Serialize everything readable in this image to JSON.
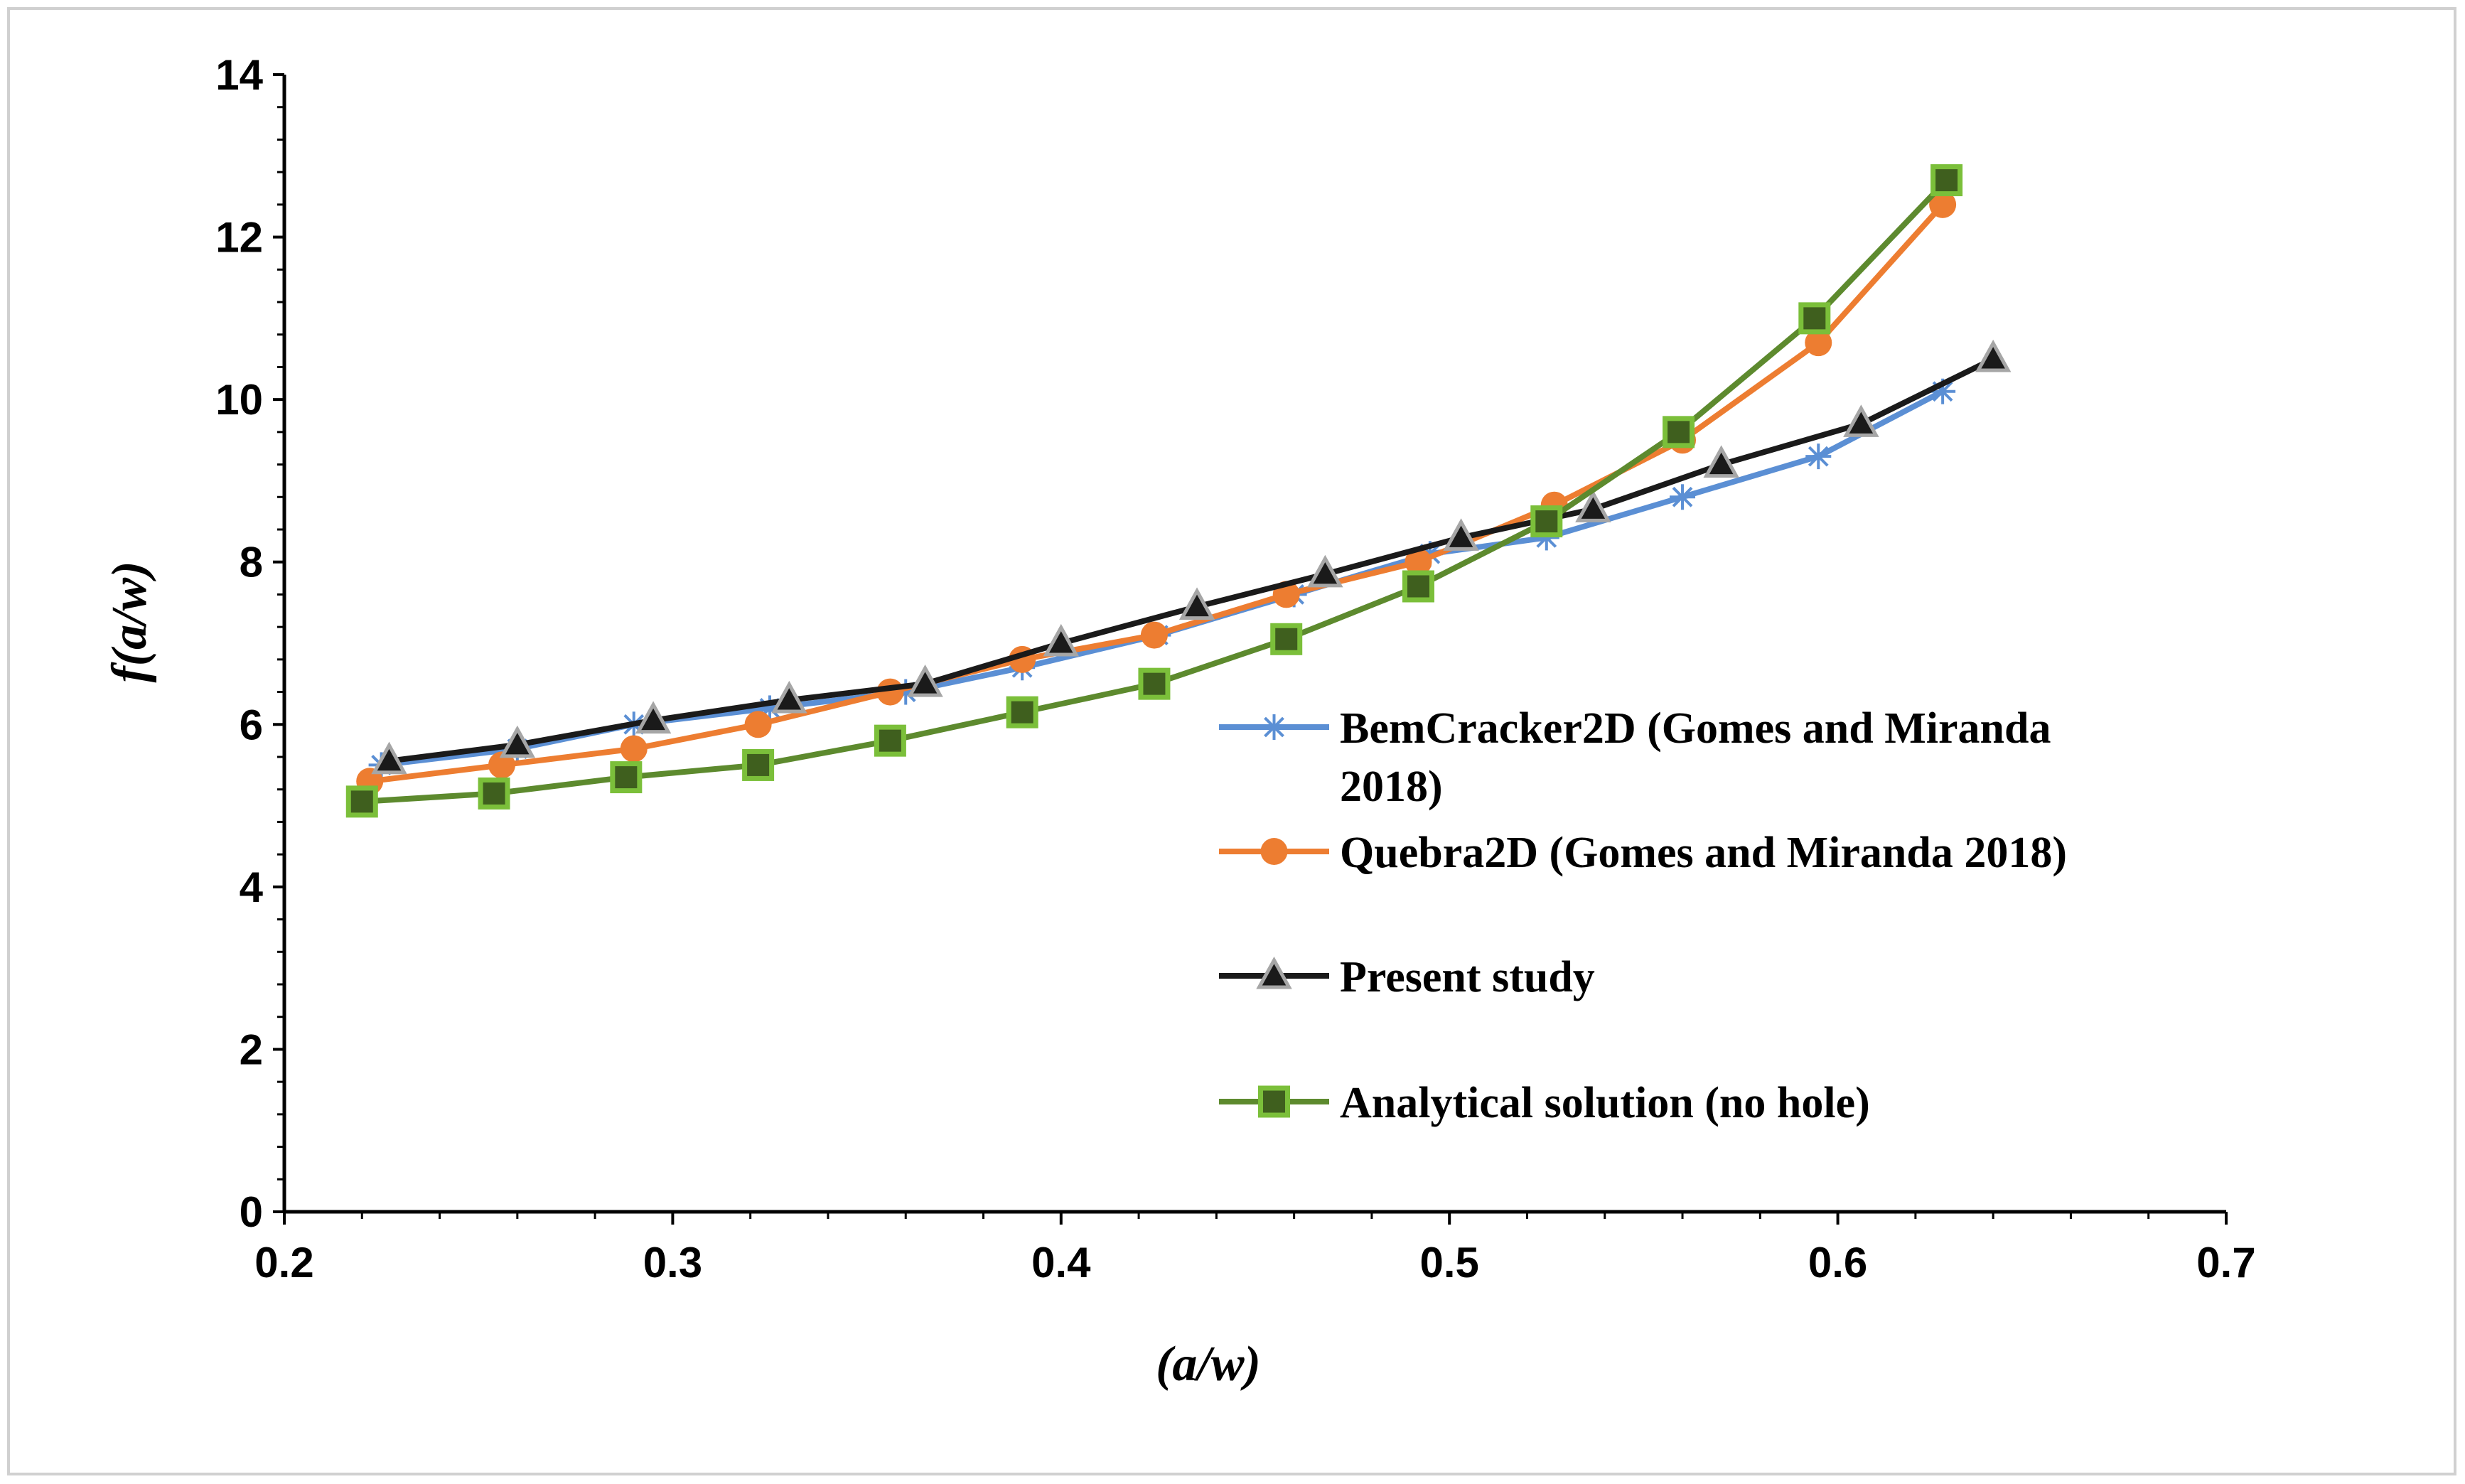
{
  "chart_data": {
    "type": "line",
    "title": "",
    "xlabel": "(a/w)",
    "ylabel": "f(a/w)",
    "xlim": [
      0.2,
      0.7
    ],
    "ylim": [
      0,
      14
    ],
    "x_ticks": [
      "0.2",
      "0.3",
      "0.4",
      "0.5",
      "0.6",
      "0.7"
    ],
    "x_tick_values": [
      0.2,
      0.3,
      0.4,
      0.5,
      0.6,
      0.7
    ],
    "y_ticks": [
      "0",
      "2",
      "4",
      "6",
      "8",
      "10",
      "12",
      "14"
    ],
    "y_tick_values": [
      0,
      2,
      4,
      6,
      8,
      10,
      12,
      14
    ],
    "grid": false,
    "legend_position": "right-middle",
    "series": [
      {
        "name": "BemCracker2D  (Gomes and Miranda 2018)",
        "name_lines": [
          "BemCracker2D  (Gomes and Miranda",
          "2018)"
        ],
        "color": "#5b8fd4",
        "marker": "asterisk",
        "x": [
          0.225,
          0.26,
          0.29,
          0.325,
          0.36,
          0.39,
          0.425,
          0.46,
          0.495,
          0.525,
          0.56,
          0.595,
          0.627
        ],
        "y": [
          5.5,
          5.7,
          6.0,
          6.2,
          6.4,
          6.7,
          7.1,
          7.6,
          8.1,
          8.3,
          8.8,
          9.3,
          10.1
        ]
      },
      {
        "name": "Quebra2D  (Gomes and Miranda 2018)",
        "color": "#ed7d31",
        "marker": "circle",
        "x": [
          0.222,
          0.256,
          0.29,
          0.322,
          0.356,
          0.39,
          0.424,
          0.458,
          0.492,
          0.527,
          0.56,
          0.595,
          0.627
        ],
        "y": [
          5.3,
          5.5,
          5.7,
          6.0,
          6.4,
          6.8,
          7.1,
          7.6,
          8.0,
          8.7,
          9.5,
          10.7,
          12.4
        ]
      },
      {
        "name": "Present study",
        "color": "#1a1a1a",
        "marker": "triangle",
        "x": [
          0.227,
          0.26,
          0.295,
          0.33,
          0.365,
          0.4,
          0.435,
          0.468,
          0.503,
          0.537,
          0.57,
          0.606,
          0.64
        ],
        "y": [
          5.55,
          5.75,
          6.05,
          6.3,
          6.5,
          7.0,
          7.45,
          7.85,
          8.3,
          8.65,
          9.2,
          9.7,
          10.5
        ]
      },
      {
        "name": "Analytical solution (no hole)",
        "color": "#5d8a2e",
        "marker": "square",
        "x": [
          0.22,
          0.254,
          0.288,
          0.322,
          0.356,
          0.39,
          0.424,
          0.458,
          0.492,
          0.525,
          0.559,
          0.594,
          0.628
        ],
        "y": [
          5.05,
          5.15,
          5.35,
          5.5,
          5.8,
          6.15,
          6.5,
          7.05,
          7.7,
          8.5,
          9.6,
          11.0,
          12.7
        ]
      }
    ]
  }
}
